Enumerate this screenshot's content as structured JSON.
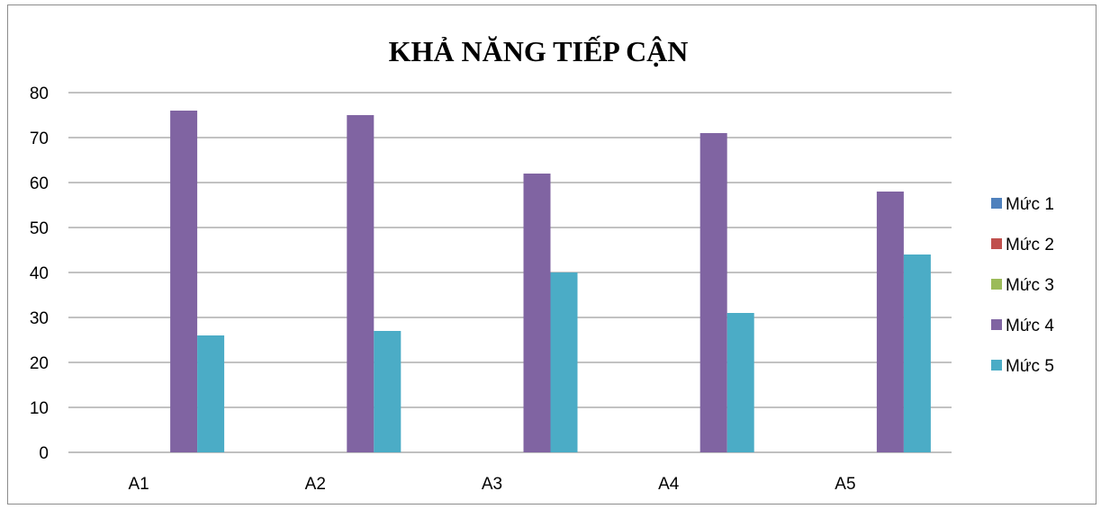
{
  "chart_data": {
    "type": "bar",
    "title": "KHẢ NĂNG TIẾP CẬN",
    "xlabel": "",
    "ylabel": "",
    "categories": [
      "A1",
      "A2",
      "A3",
      "A4",
      "A5"
    ],
    "ylim": [
      0,
      80
    ],
    "yticks": [
      0,
      10,
      20,
      30,
      40,
      50,
      60,
      70,
      80
    ],
    "grid": true,
    "legend_position": "right",
    "series": [
      {
        "name": "Mức 1",
        "color": "#4f81bd",
        "values": [
          0,
          0,
          0,
          0,
          0
        ]
      },
      {
        "name": "Mức 2",
        "color": "#c0504d",
        "values": [
          0,
          0,
          0,
          0,
          0
        ]
      },
      {
        "name": "Mức 3",
        "color": "#9bbb59",
        "values": [
          0,
          0,
          0,
          0,
          0
        ]
      },
      {
        "name": "Mức 4",
        "color": "#8064a2",
        "values": [
          76,
          75,
          62,
          71,
          58
        ]
      },
      {
        "name": "Mức 5",
        "color": "#4bacc6",
        "values": [
          26,
          27,
          40,
          31,
          44
        ]
      }
    ]
  }
}
